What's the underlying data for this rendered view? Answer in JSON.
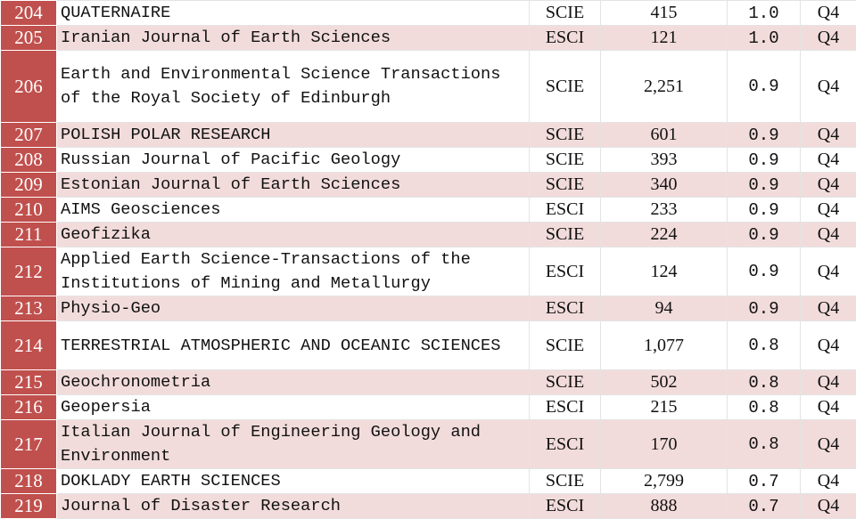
{
  "table": {
    "rows": [
      [
        204,
        "QUATERNAIRE",
        "SCIE",
        "415",
        "1.0",
        "Q4"
      ],
      [
        205,
        "Iranian Journal of Earth Sciences",
        "ESCI",
        "121",
        "1.0",
        "Q4"
      ],
      [
        206,
        "Earth and Environmental Science Transactions of the Royal Society of Edinburgh",
        "SCIE",
        "2,251",
        "0.9",
        "Q4"
      ],
      [
        207,
        "POLISH POLAR RESEARCH",
        "SCIE",
        "601",
        "0.9",
        "Q4"
      ],
      [
        208,
        "Russian Journal of Pacific Geology",
        "SCIE",
        "393",
        "0.9",
        "Q4"
      ],
      [
        209,
        "Estonian Journal of Earth Sciences",
        "SCIE",
        "340",
        "0.9",
        "Q4"
      ],
      [
        210,
        "AIMS Geosciences",
        "ESCI",
        "233",
        "0.9",
        "Q4"
      ],
      [
        211,
        "Geofizika",
        "SCIE",
        "224",
        "0.9",
        "Q4"
      ],
      [
        212,
        "Applied Earth Science-Transactions of the Institutions of Mining and Metallurgy",
        "ESCI",
        "124",
        "0.9",
        "Q4"
      ],
      [
        213,
        "Physio-Geo",
        "ESCI",
        "94",
        "0.9",
        "Q4"
      ],
      [
        214,
        "TERRESTRIAL ATMOSPHERIC AND OCEANIC SCIENCES",
        "SCIE",
        "1,077",
        "0.8",
        "Q4"
      ],
      [
        215,
        "Geochronometria",
        "SCIE",
        "502",
        "0.8",
        "Q4"
      ],
      [
        216,
        "Geopersia",
        "ESCI",
        "215",
        "0.8",
        "Q4"
      ],
      [
        217,
        "Italian Journal of Engineering Geology and Environment",
        "ESCI",
        "170",
        "0.8",
        "Q4"
      ],
      [
        218,
        "DOKLADY EARTH SCIENCES",
        "SCIE",
        "2,799",
        "0.7",
        "Q4"
      ],
      [
        219,
        "Journal of Disaster Research",
        "ESCI",
        "888",
        "0.7",
        "Q4"
      ]
    ]
  }
}
